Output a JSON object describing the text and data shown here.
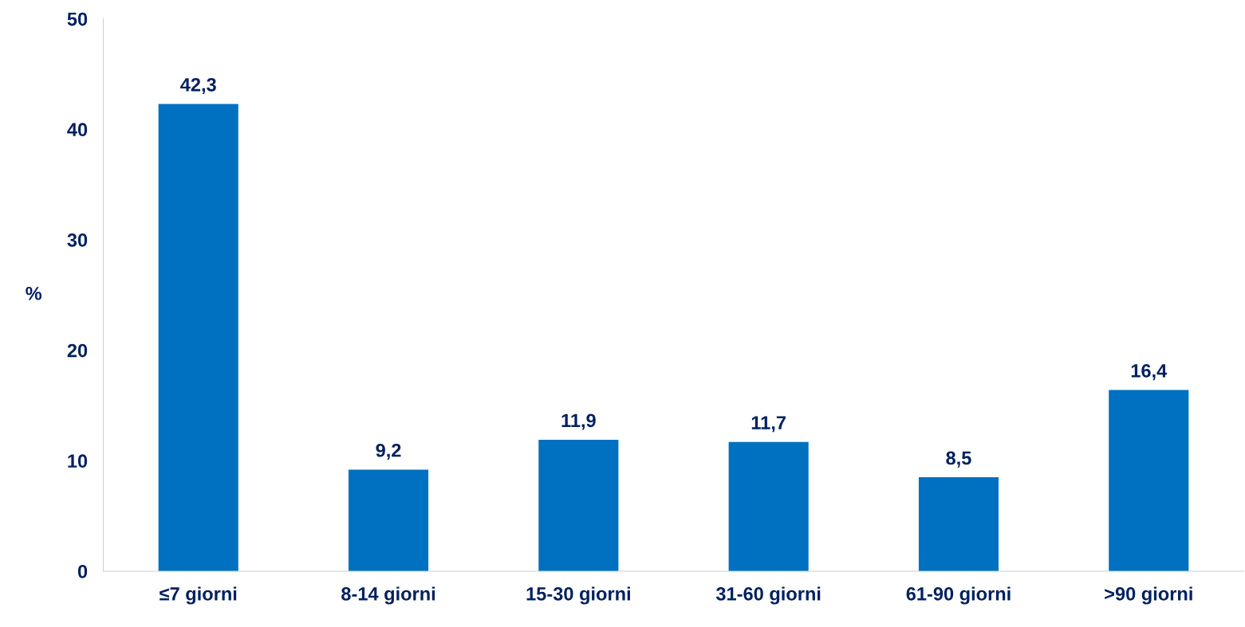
{
  "chart_data": {
    "type": "bar",
    "ylabel": "%",
    "categories": [
      "≤7 giorni",
      "8-14 giorni",
      "15-30 giorni",
      "31-60 giorni",
      "61-90 giorni",
      ">90 giorni"
    ],
    "values": [
      42.3,
      9.2,
      11.9,
      11.7,
      8.5,
      16.4
    ],
    "value_labels": [
      "42,3",
      "9,2",
      "11,9",
      "11,7",
      "8,5",
      "16,4"
    ],
    "color": "#0070c0",
    "ylim": [
      0,
      50
    ],
    "yticks": [
      0,
      10,
      20,
      30,
      40,
      50
    ],
    "grid": false,
    "legend": false
  }
}
